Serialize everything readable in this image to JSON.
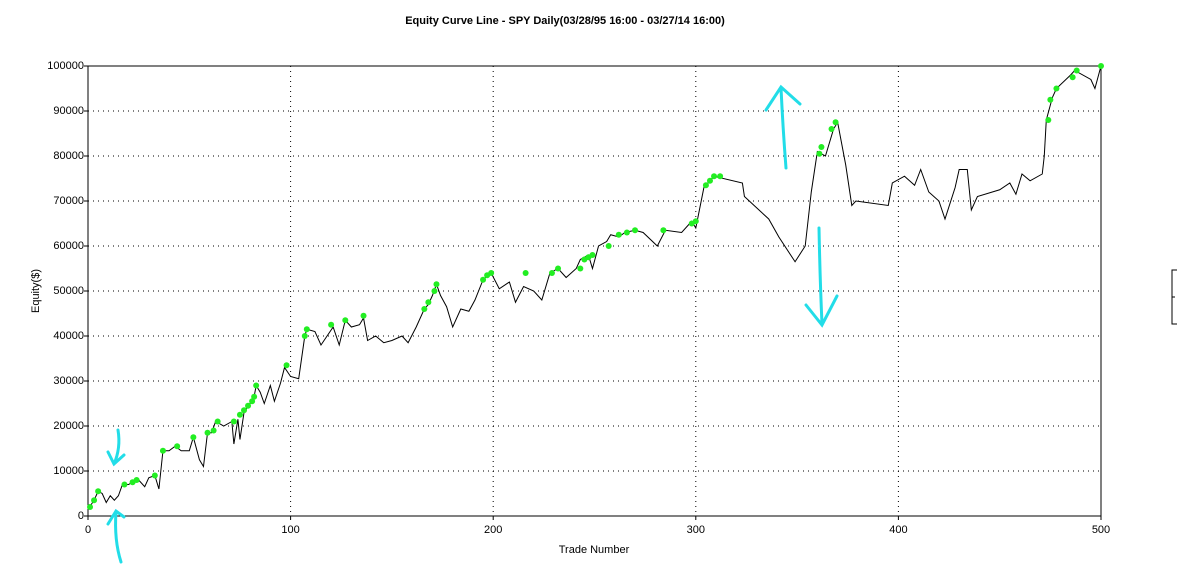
{
  "chart_data": {
    "type": "line",
    "title": "Equity Curve Line - SPY Daily(03/28/95 16:00 - 03/27/14 16:00)",
    "x_label": "Trade Number",
    "y_label": "Equity($)",
    "xlim": [
      0,
      500
    ],
    "xticks": [
      0,
      100,
      200,
      300,
      400,
      500
    ],
    "ylim": [
      0,
      100000
    ],
    "yticks": [
      0,
      10000,
      20000,
      30000,
      40000,
      50000,
      60000,
      70000,
      80000,
      90000,
      100000
    ],
    "grid": true,
    "series": [
      {
        "type": "line",
        "color": "#000000",
        "x": [
          0,
          3,
          5,
          7,
          9,
          11,
          13,
          15,
          17,
          20,
          22,
          25,
          28,
          30,
          33,
          35,
          37,
          40,
          43,
          46,
          50,
          52,
          55,
          57,
          59,
          61,
          63,
          67,
          71,
          72,
          74,
          75,
          77,
          80,
          82,
          83,
          85,
          87,
          90,
          92,
          95,
          97,
          100,
          104,
          107,
          108,
          112,
          115,
          118,
          121,
          124,
          127,
          130,
          134,
          136,
          138,
          142,
          146,
          150,
          155,
          158,
          162,
          166,
          168,
          170,
          172,
          174,
          177,
          180,
          184,
          188,
          191,
          195,
          199,
          203,
          208,
          211,
          215,
          220,
          224,
          228,
          232,
          236,
          241,
          243,
          247,
          249,
          252,
          256,
          258,
          262,
          265,
          270,
          274,
          281,
          285,
          293,
          298,
          300,
          304,
          309,
          323,
          324,
          336,
          341,
          349,
          354,
          357,
          360,
          364,
          368,
          370,
          374,
          377,
          379,
          395,
          397,
          403,
          408,
          411,
          415,
          420,
          423,
          428,
          430,
          434,
          436,
          439,
          450,
          455,
          458,
          461,
          465,
          471,
          472,
          473,
          476,
          478,
          485,
          487,
          495,
          497,
          500
        ],
        "values": [
          1500,
          3500,
          5500,
          5000,
          3000,
          4500,
          3500,
          4500,
          7000,
          7000,
          7500,
          8000,
          6500,
          8500,
          9000,
          6000,
          14500,
          14500,
          15500,
          14500,
          14500,
          17500,
          12500,
          11000,
          18500,
          18500,
          21000,
          20000,
          21000,
          16000,
          21500,
          17000,
          23000,
          25000,
          26500,
          29000,
          27500,
          25000,
          29000,
          25500,
          29500,
          33000,
          31000,
          30500,
          40000,
          41500,
          41000,
          38000,
          40000,
          42000,
          38000,
          43500,
          42000,
          42500,
          44000,
          39000,
          40000,
          38500,
          39000,
          40000,
          38500,
          42000,
          46000,
          47000,
          49000,
          51500,
          49000,
          46500,
          42000,
          46000,
          45500,
          48000,
          52500,
          54000,
          50500,
          52000,
          47500,
          51000,
          50000,
          48000,
          54000,
          55000,
          53000,
          55000,
          57000,
          58000,
          55000,
          60000,
          61000,
          62500,
          62000,
          63000,
          63500,
          63000,
          60000,
          63500,
          63000,
          65500,
          64000,
          73000,
          75500,
          74000,
          71000,
          66000,
          62000,
          56500,
          60000,
          72000,
          81000,
          80000,
          86000,
          87500,
          78000,
          69000,
          70000,
          69000,
          74000,
          75500,
          73500,
          77000,
          72000,
          70000,
          66000,
          73000,
          77000,
          77000,
          68000,
          71000,
          72500,
          74000,
          71500,
          76000,
          74500,
          76000,
          80000,
          88000,
          93000,
          95000,
          98000,
          99000,
          97000,
          95000,
          100000
        ]
      },
      {
        "type": "scatter",
        "color": "#22ee22",
        "x": [
          1,
          3,
          5,
          18,
          22,
          24,
          33,
          37,
          44,
          52,
          59,
          62,
          64,
          72,
          75,
          77,
          79,
          81,
          82,
          83,
          98,
          107,
          108,
          120,
          127,
          136,
          166,
          168,
          171,
          172,
          195,
          197,
          199,
          216,
          229,
          232,
          243,
          245,
          247,
          249,
          257,
          262,
          266,
          270,
          284,
          298,
          300,
          305,
          307,
          309,
          312,
          361,
          362,
          367,
          369,
          474,
          475,
          478,
          486,
          488,
          500
        ],
        "values": [
          2000,
          3500,
          5500,
          7000,
          7500,
          8000,
          9000,
          14500,
          15500,
          17500,
          18500,
          19000,
          21000,
          21000,
          22500,
          23500,
          24500,
          25500,
          26500,
          29000,
          33500,
          40000,
          41500,
          42500,
          43500,
          44500,
          46000,
          47500,
          50000,
          51500,
          52500,
          53500,
          54000,
          54000,
          54000,
          55000,
          55000,
          57000,
          57500,
          58000,
          60000,
          62500,
          63000,
          63500,
          63500,
          65000,
          65500,
          73500,
          74500,
          75500,
          75500,
          80500,
          82000,
          86000,
          87500,
          88000,
          92500,
          95000,
          97500,
          99000,
          100000
        ]
      }
    ]
  }
}
